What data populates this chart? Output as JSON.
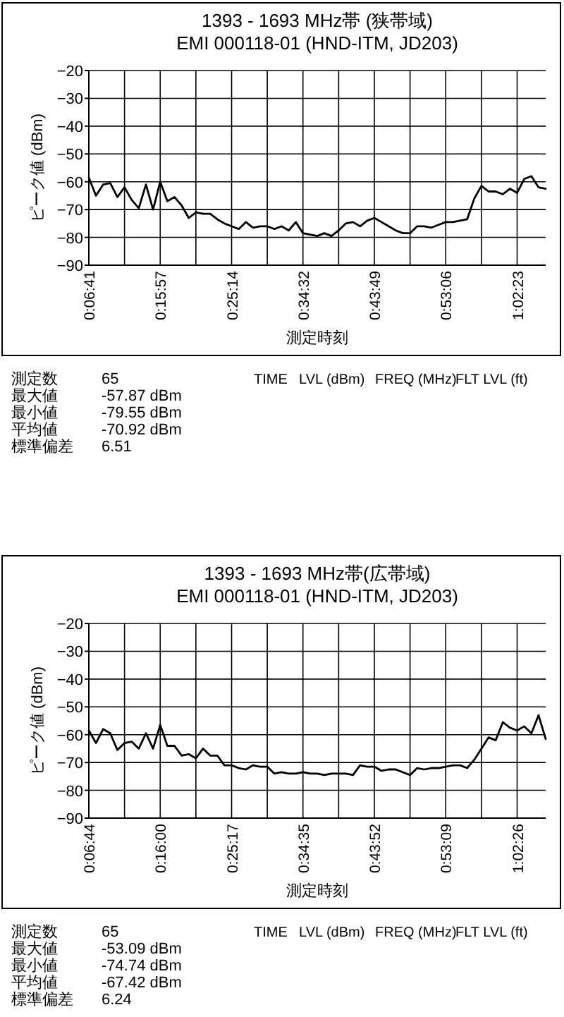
{
  "chart_data": [
    {
      "type": "line",
      "title": "1393 - 1693 MHz帯 (狭帯域)",
      "subtitle": "EMI 000118-01 (HND-ITM,  JD203)",
      "xlabel": "測定時刻",
      "ylabel": "ピーク値 (dBm)",
      "ylim": [
        -90,
        -20
      ],
      "yticks": [
        -90,
        -80,
        -70,
        -60,
        -50,
        -40,
        -30,
        -20
      ],
      "grid": true,
      "categories": [
        "0:06:41",
        null,
        null,
        null,
        null,
        null,
        null,
        null,
        null,
        null,
        "0:15:57",
        null,
        null,
        null,
        null,
        null,
        null,
        null,
        null,
        null,
        "0:25:14",
        null,
        null,
        null,
        null,
        null,
        null,
        null,
        null,
        null,
        "0:34:32",
        null,
        null,
        null,
        null,
        null,
        null,
        null,
        null,
        null,
        "0:43:49",
        null,
        null,
        null,
        null,
        null,
        null,
        null,
        null,
        null,
        "0:53:06",
        null,
        null,
        null,
        null,
        null,
        null,
        null,
        null,
        null,
        "1:02:23",
        null,
        null,
        null,
        null
      ],
      "series": [
        {
          "color": "#000000",
          "values": [
            -58.5,
            -65,
            -61,
            -60.5,
            -65.5,
            -62,
            -66.5,
            -69.5,
            -61,
            -70,
            -60,
            -67,
            -65.5,
            -68.5,
            -73,
            -71,
            -71.5,
            -71.5,
            -73.5,
            -75,
            -76,
            -77,
            -74.5,
            -76.5,
            -76,
            -76,
            -77,
            -76,
            -77.5,
            -74.5,
            -78.5,
            -79,
            -79.5,
            -78.5,
            -79.5,
            -77.5,
            -75,
            -74.5,
            -76,
            -74,
            -73,
            -74.5,
            -76,
            -77.5,
            -78.5,
            -78.5,
            -76,
            -76,
            -76.5,
            -75.5,
            -74.5,
            -74.5,
            -74,
            -73.5,
            -66,
            -61.5,
            -63.5,
            -63.5,
            -64.5,
            -62.5,
            -64,
            -59,
            -58,
            -62,
            -62.5
          ]
        }
      ],
      "annotations": [
        "測定数",
        "65",
        "最大値",
        "-57.87  dBm",
        "最小値",
        "-79.55  dBm",
        "平均値",
        "-70.92  dBm",
        "標準偏差",
        "6.51",
        "TIME",
        "LVL (dBm)",
        "FREQ (MHz)",
        "FLT LVL (ft)"
      ]
    },
    {
      "type": "line",
      "title": "1393 - 1693 MHz帯(広帯域)",
      "subtitle": "EMI 000118-01 (HND-ITM,  JD203)",
      "xlabel": "測定時刻",
      "ylabel": "ピーク値 (dBm)",
      "ylim": [
        -90,
        -20
      ],
      "yticks": [
        -90,
        -80,
        -70,
        -60,
        -50,
        -40,
        -30,
        -20
      ],
      "grid": true,
      "categories": [
        "0:06:44",
        null,
        null,
        null,
        null,
        null,
        null,
        null,
        null,
        null,
        "0:16:00",
        null,
        null,
        null,
        null,
        null,
        null,
        null,
        null,
        null,
        "0:25:17",
        null,
        null,
        null,
        null,
        null,
        null,
        null,
        null,
        null,
        "0:34:35",
        null,
        null,
        null,
        null,
        null,
        null,
        null,
        null,
        null,
        "0:43:52",
        null,
        null,
        null,
        null,
        null,
        null,
        null,
        null,
        null,
        "0:53:09",
        null,
        null,
        null,
        null,
        null,
        null,
        null,
        null,
        null,
        "1:02:26",
        null,
        null,
        null,
        null
      ],
      "series": [
        {
          "color": "#000000",
          "values": [
            -58.5,
            -63,
            -58,
            -59.5,
            -65.5,
            -63,
            -62.5,
            -65,
            -59.5,
            -65,
            -56.5,
            -64,
            -64,
            -67.5,
            -67,
            -68.5,
            -65,
            -67.5,
            -67.5,
            -71,
            -71,
            -72,
            -72.5,
            -71,
            -71.5,
            -71.5,
            -74,
            -73.5,
            -74,
            -74,
            -73.5,
            -74,
            -74,
            -74.5,
            -74,
            -74,
            -74,
            -74.5,
            -71,
            -71.5,
            -71.5,
            -73,
            -72.5,
            -72.5,
            -73.5,
            -74.5,
            -72,
            -72.5,
            -72,
            -72,
            -71.5,
            -71,
            -71,
            -72,
            -69,
            -65,
            -61,
            -62,
            -55.5,
            -57.5,
            -58.5,
            -57,
            -59.5,
            -53,
            -61.5
          ]
        }
      ],
      "annotations": [
        "測定数",
        "65",
        "最大値",
        "-53.09  dBm",
        "最小値",
        "-74.74  dBm",
        "平均値",
        "-67.42  dBm",
        "標準偏差",
        "6.24",
        "TIME",
        "LVL (dBm)",
        "FREQ (MHz)",
        "FLT LVL (ft)"
      ]
    }
  ]
}
